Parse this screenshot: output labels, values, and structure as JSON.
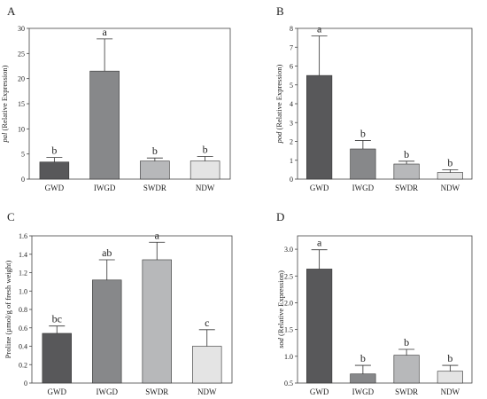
{
  "colors": {
    "GWD": "#58585a",
    "IWGD": "#87888a",
    "SWDR": "#b7b8ba",
    "NDW": "#e4e4e4",
    "axis": "#444444"
  },
  "chart_data": [
    {
      "panel": "A",
      "type": "bar",
      "ylabel_italic": "pal",
      "ylabel_rest": " (Relative Expression)",
      "categories": [
        "GWD",
        "IWGD",
        "SWDR",
        "NDW"
      ],
      "values": [
        3.4,
        21.5,
        3.6,
        3.6
      ],
      "errors": [
        0.9,
        6.4,
        0.6,
        0.9
      ],
      "letters": [
        "b",
        "a",
        "b",
        "b"
      ],
      "ylim": [
        0,
        30
      ],
      "ticks": [
        "0",
        "5",
        "10",
        "15",
        "20",
        "25",
        "30"
      ],
      "tick_values": [
        0,
        5,
        10,
        15,
        20,
        25,
        30
      ]
    },
    {
      "panel": "B",
      "type": "bar",
      "ylabel_italic": "pod",
      "ylabel_rest": " (Relative Expression)",
      "categories": [
        "GWD",
        "IWGD",
        "SWDR",
        "NDW"
      ],
      "values": [
        5.5,
        1.6,
        0.8,
        0.35
      ],
      "errors": [
        2.1,
        0.45,
        0.15,
        0.15
      ],
      "letters": [
        "a",
        "b",
        "b",
        "b"
      ],
      "ylim": [
        0,
        8
      ],
      "ticks": [
        "0",
        "1",
        "2",
        "3",
        "4",
        "5",
        "6",
        "7",
        "8"
      ],
      "tick_values": [
        0,
        1,
        2,
        3,
        4,
        5,
        6,
        7,
        8
      ]
    },
    {
      "panel": "C",
      "type": "bar",
      "ylabel_italic": "",
      "ylabel_rest": "Proline (µmol/g of fresh weight)",
      "categories": [
        "GWD",
        "IWGD",
        "SWDR",
        "NDW"
      ],
      "values": [
        0.54,
        1.12,
        1.34,
        0.4
      ],
      "errors": [
        0.08,
        0.22,
        0.19,
        0.18
      ],
      "letters": [
        "bc",
        "ab",
        "a",
        "c"
      ],
      "ylim": [
        0,
        1.6
      ],
      "ticks": [
        "0",
        "0.2",
        "0.4",
        "0.6",
        "0.8",
        "1.0",
        "1.2",
        "1.4",
        "1.6"
      ],
      "tick_values": [
        0,
        0.2,
        0.4,
        0.6,
        0.8,
        1.0,
        1.2,
        1.4,
        1.6
      ]
    },
    {
      "panel": "D",
      "type": "bar",
      "ylabel_italic": "sod",
      "ylabel_rest": " (Relative Expression)",
      "categories": [
        "GWD",
        "IWGD",
        "SWDR",
        "NDW"
      ],
      "values": [
        2.63,
        0.67,
        1.02,
        0.72
      ],
      "errors": [
        0.36,
        0.16,
        0.11,
        0.11
      ],
      "letters": [
        "a",
        "b",
        "b",
        "b"
      ],
      "ylim": [
        0.5,
        3.25
      ],
      "ticks": [
        "0.5",
        "1.0",
        "1.5",
        "2.0",
        "2.5",
        "3.0"
      ],
      "tick_values": [
        0.5,
        1.0,
        1.5,
        2.0,
        2.5,
        3.0
      ]
    }
  ]
}
